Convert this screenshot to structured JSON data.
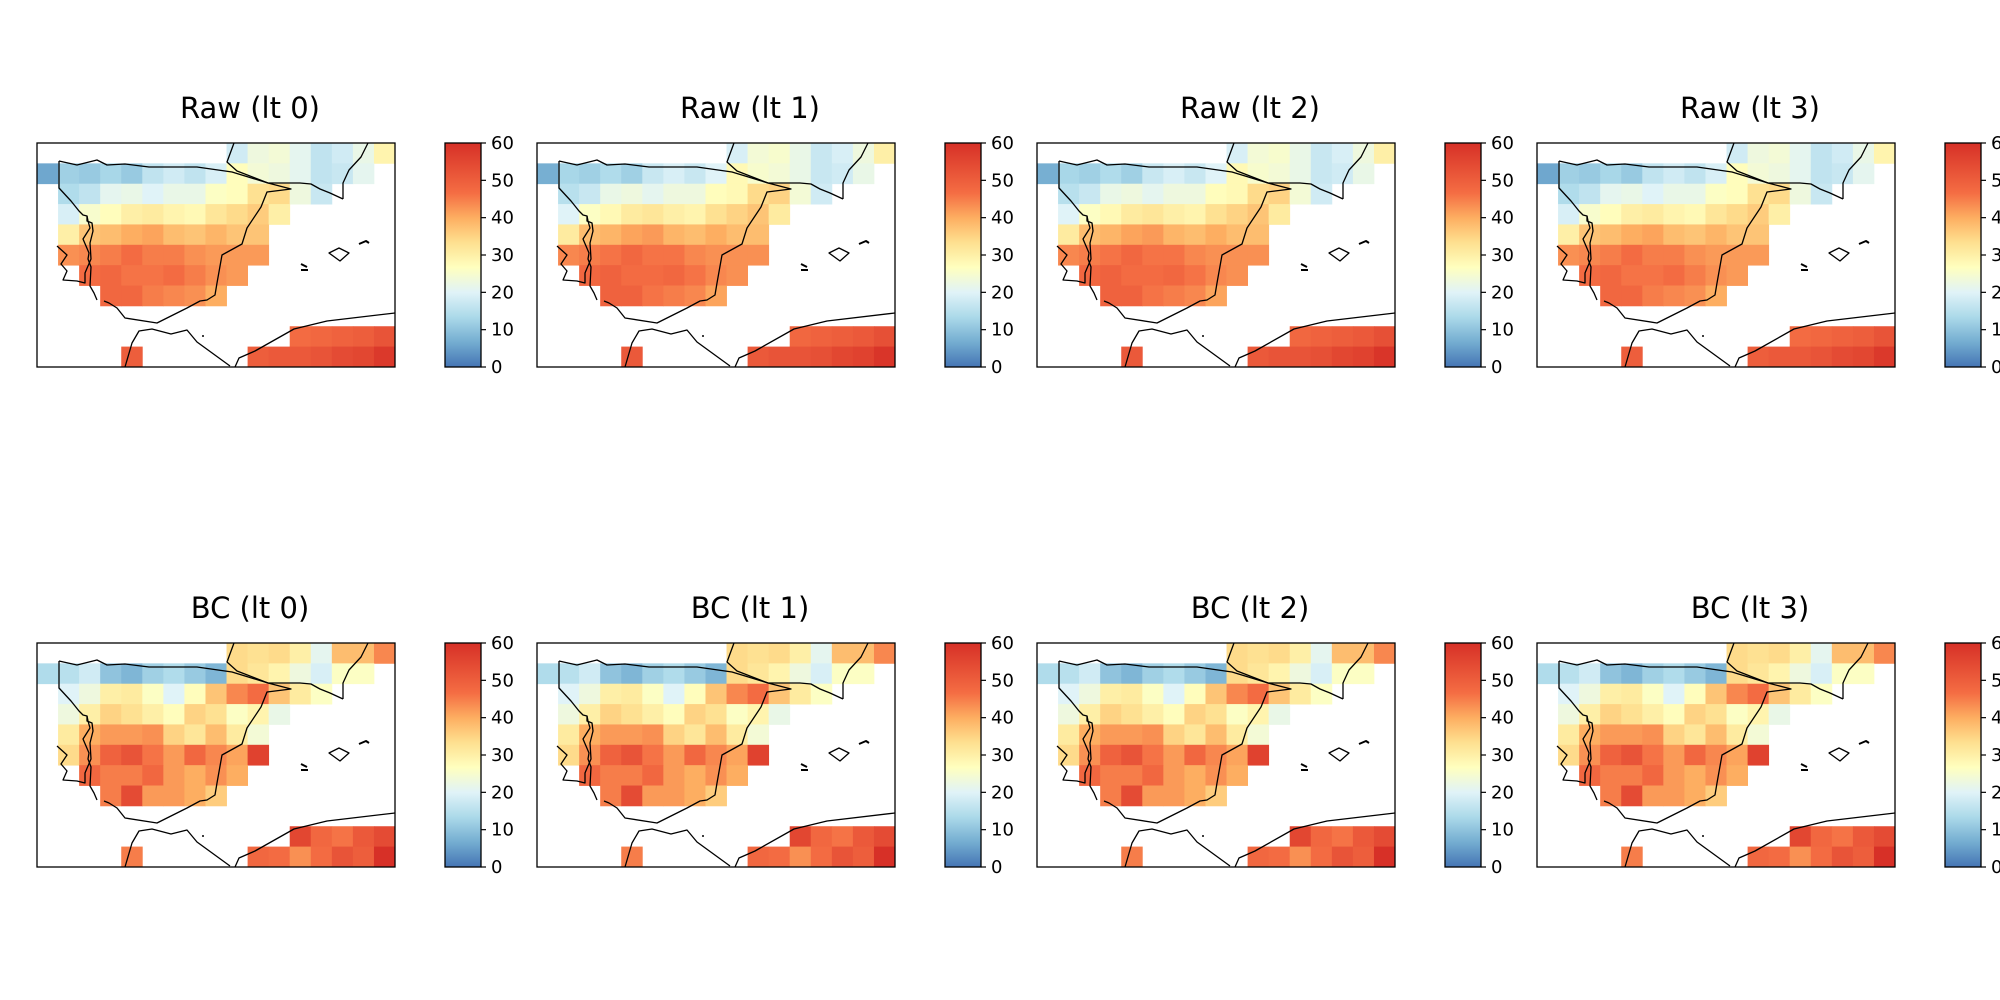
{
  "chart_data": {
    "type": "heatmap",
    "layout": {
      "rows": 2,
      "cols": 4
    },
    "colorbar": {
      "ticks": [
        0,
        10,
        20,
        30,
        40,
        50,
        60
      ],
      "range": [
        0,
        60
      ],
      "colormap": "RdYlBu_r"
    },
    "panels": [
      {
        "title": "Raw (lt 0)",
        "variant": "raw",
        "offset": 0
      },
      {
        "title": "Raw (lt 1)",
        "variant": "raw",
        "offset": 1
      },
      {
        "title": "Raw (lt 2)",
        "variant": "raw",
        "offset": 1
      },
      {
        "title": "Raw (lt 3)",
        "variant": "raw",
        "offset": 0
      },
      {
        "title": "BC (lt 0)",
        "variant": "bc",
        "offset": 0
      },
      {
        "title": "BC (lt 1)",
        "variant": "bc",
        "offset": 0
      },
      {
        "title": "BC (lt 2)",
        "variant": "bc",
        "offset": 0
      },
      {
        "title": "BC (lt 3)",
        "variant": "bc",
        "offset": 0
      }
    ],
    "grids": {
      "raw": [
        [
          null,
          null,
          null,
          null,
          null,
          null,
          null,
          null,
          null,
          18,
          23,
          24,
          21,
          16,
          18,
          22,
          29
        ],
        [
          6,
          12,
          11,
          13,
          11,
          16,
          18,
          16,
          19,
          27,
          24,
          23,
          21,
          16,
          17,
          21,
          null
        ],
        [
          null,
          14,
          16,
          21,
          22,
          20,
          22,
          22,
          26,
          27,
          33,
          34,
          23,
          17,
          null,
          null,
          null
        ],
        [
          null,
          19,
          25,
          27,
          30,
          31,
          29,
          28,
          32,
          34,
          36,
          30,
          null,
          null,
          null,
          null,
          null
        ],
        [
          null,
          30,
          37,
          38,
          40,
          41,
          38,
          37,
          39,
          37,
          37,
          null,
          null,
          null,
          null,
          null,
          null
        ],
        [
          null,
          43,
          44,
          45,
          47,
          45,
          45,
          43,
          42,
          42,
          42,
          null,
          null,
          null,
          null,
          null,
          null
        ],
        [
          null,
          null,
          47,
          48,
          46,
          46,
          47,
          45,
          43,
          42,
          null,
          null,
          null,
          null,
          null,
          null,
          null
        ],
        [
          null,
          null,
          null,
          48,
          48,
          45,
          44,
          43,
          40,
          null,
          null,
          null,
          null,
          null,
          null,
          null,
          null
        ],
        [
          null,
          null,
          null,
          null,
          null,
          null,
          null,
          null,
          null,
          null,
          null,
          null,
          null,
          null,
          null,
          null,
          null
        ],
        [
          null,
          null,
          null,
          null,
          null,
          null,
          null,
          null,
          null,
          null,
          null,
          null,
          47,
          48,
          49,
          50,
          52
        ],
        [
          null,
          null,
          null,
          null,
          50,
          null,
          null,
          null,
          null,
          null,
          50,
          51,
          51,
          52,
          54,
          55,
          58
        ]
      ],
      "bc": [
        [
          null,
          null,
          null,
          null,
          null,
          null,
          null,
          null,
          null,
          34,
          33,
          34,
          30,
          21,
          38,
          38,
          44
        ],
        [
          14,
          15,
          18,
          10,
          8,
          12,
          14,
          11,
          8,
          34,
          32,
          29,
          23,
          19,
          26,
          26,
          null
        ],
        [
          null,
          20,
          23,
          30,
          31,
          26,
          20,
          27,
          37,
          44,
          47,
          37,
          31,
          26,
          null,
          null,
          null
        ],
        [
          null,
          23,
          30,
          35,
          33,
          30,
          27,
          35,
          33,
          26,
          29,
          22,
          null,
          null,
          null,
          null,
          null
        ],
        [
          null,
          31,
          40,
          42,
          42,
          43,
          35,
          32,
          38,
          31,
          24,
          null,
          null,
          null,
          null,
          null,
          null
        ],
        [
          null,
          34,
          43,
          49,
          52,
          46,
          42,
          48,
          44,
          41,
          56,
          null,
          null,
          null,
          null,
          null,
          null
        ],
        [
          null,
          null,
          48,
          45,
          45,
          48,
          42,
          40,
          43,
          40,
          null,
          null,
          null,
          null,
          null,
          null,
          null
        ],
        [
          null,
          null,
          null,
          45,
          54,
          42,
          42,
          40,
          36,
          null,
          null,
          null,
          null,
          null,
          null,
          null,
          null
        ],
        [
          null,
          null,
          null,
          null,
          null,
          null,
          null,
          null,
          null,
          null,
          null,
          null,
          null,
          null,
          null,
          null,
          null
        ],
        [
          null,
          null,
          null,
          null,
          null,
          null,
          null,
          null,
          null,
          null,
          null,
          null,
          55,
          48,
          46,
          51,
          54
        ],
        [
          null,
          null,
          null,
          null,
          45,
          null,
          null,
          null,
          null,
          null,
          48,
          47,
          43,
          47,
          52,
          50,
          60
        ]
      ]
    }
  }
}
